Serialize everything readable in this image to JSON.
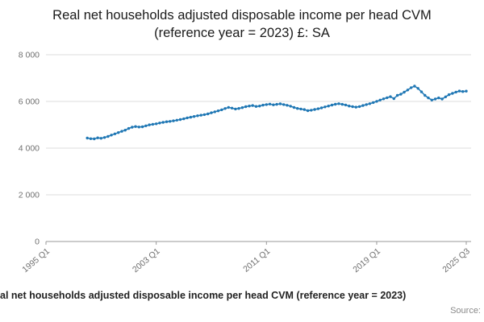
{
  "page": {
    "title": "Real net households adjusted disposable income per head CVM (reference year = 2023) £: SA",
    "footer_caption": "al net households adjusted disposable income per head CVM (reference year = 2023)",
    "source_label": "Source:"
  },
  "colors": {
    "line": "#1f77b4",
    "grid": "#dcdcdc",
    "axis": "#999999",
    "tick_text": "#707070"
  },
  "chart_data": {
    "type": "line",
    "title": "Real net households adjusted disposable income per head CVM (reference year = 2023) £: SA",
    "xlabel": "",
    "ylabel": "",
    "grid": "horizontal",
    "legend": "none",
    "markers": true,
    "x_axis": {
      "domain": [
        "1995 Q1",
        "2025 Q3"
      ],
      "total_quarters": 122,
      "ticks": [
        {
          "label": "1995 Q1",
          "q": 0
        },
        {
          "label": "2003 Q1",
          "q": 32
        },
        {
          "label": "2011 Q1",
          "q": 64
        },
        {
          "label": "2019 Q1",
          "q": 96
        },
        {
          "label": "2025 Q3",
          "q": 122
        }
      ]
    },
    "y_axis": {
      "min": 0,
      "max": 8000,
      "tick_values": [
        0,
        2000,
        4000,
        6000,
        8000
      ],
      "tick_labels": [
        "0",
        "2 000",
        "4 000",
        "6 000",
        "8 000"
      ]
    },
    "series": [
      {
        "name": "Real net households adjusted disposable income per head CVM (reference year = 2023) £: SA",
        "unit": "£",
        "frequency": "quarterly",
        "start": "1998 Q1",
        "start_quarter_offset": 12,
        "values": [
          4430,
          4405,
          4395,
          4440,
          4420,
          4455,
          4500,
          4560,
          4610,
          4665,
          4720,
          4770,
          4840,
          4895,
          4925,
          4905,
          4915,
          4955,
          4995,
          5020,
          5040,
          5075,
          5105,
          5130,
          5145,
          5170,
          5195,
          5225,
          5255,
          5295,
          5325,
          5355,
          5385,
          5410,
          5435,
          5465,
          5515,
          5555,
          5595,
          5640,
          5695,
          5745,
          5715,
          5675,
          5700,
          5735,
          5775,
          5805,
          5825,
          5785,
          5805,
          5840,
          5865,
          5885,
          5855,
          5875,
          5895,
          5865,
          5835,
          5795,
          5740,
          5700,
          5675,
          5650,
          5605,
          5625,
          5655,
          5685,
          5725,
          5765,
          5805,
          5845,
          5880,
          5905,
          5875,
          5850,
          5805,
          5775,
          5755,
          5780,
          5825,
          5865,
          5905,
          5950,
          6005,
          6060,
          6110,
          6160,
          6205,
          6120,
          6260,
          6310,
          6395,
          6490,
          6590,
          6655,
          6560,
          6410,
          6260,
          6150,
          6060,
          6105,
          6150,
          6105,
          6195,
          6290,
          6345,
          6400,
          6445,
          6425,
          6440
        ]
      }
    ]
  }
}
